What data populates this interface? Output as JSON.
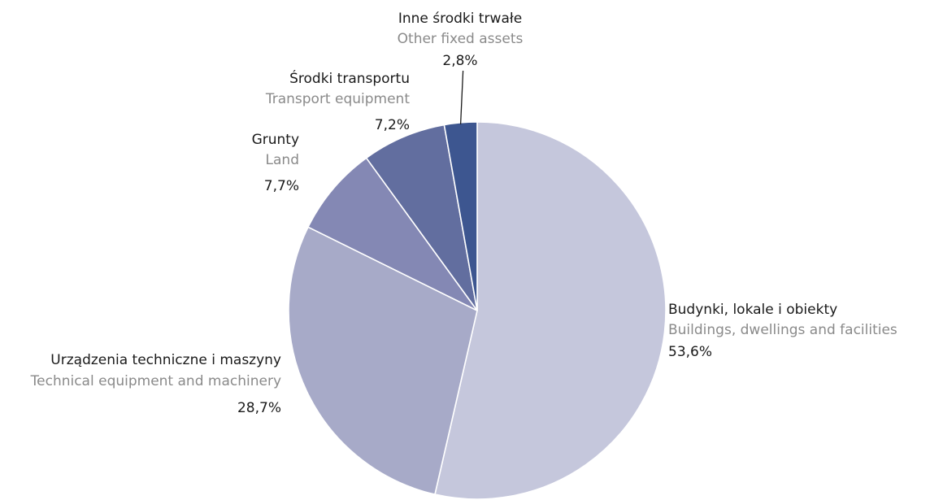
{
  "chart_data": {
    "type": "pie",
    "start_angle_deg": 0,
    "direction": "clockwise",
    "values": [
      53.6,
      28.7,
      7.7,
      7.2,
      2.8
    ],
    "slices": [
      {
        "label_pl": "Budynki, lokale i obiekty",
        "label_en": "Buildings, dwellings and facilities",
        "value": 53.6,
        "value_label": "53,6%",
        "color": "#c5c7dc"
      },
      {
        "label_pl": "Urządzenia techniczne i maszyny",
        "label_en": "Technical equipment and machinery",
        "value": 28.7,
        "value_label": "28,7%",
        "color": "#a7aac8"
      },
      {
        "label_pl": "Grunty",
        "label_en": "Land",
        "value": 7.7,
        "value_label": "7,7%",
        "color": "#8488b4"
      },
      {
        "label_pl": "Środki transportu",
        "label_en": "Transport equipment",
        "value": 7.2,
        "value_label": "7,2%",
        "color": "#626e9f"
      },
      {
        "label_pl": "Inne środki trwałe",
        "label_en": "Other fixed assets",
        "value": 2.8,
        "value_label": "2,8%",
        "color": "#3d5690"
      }
    ]
  }
}
